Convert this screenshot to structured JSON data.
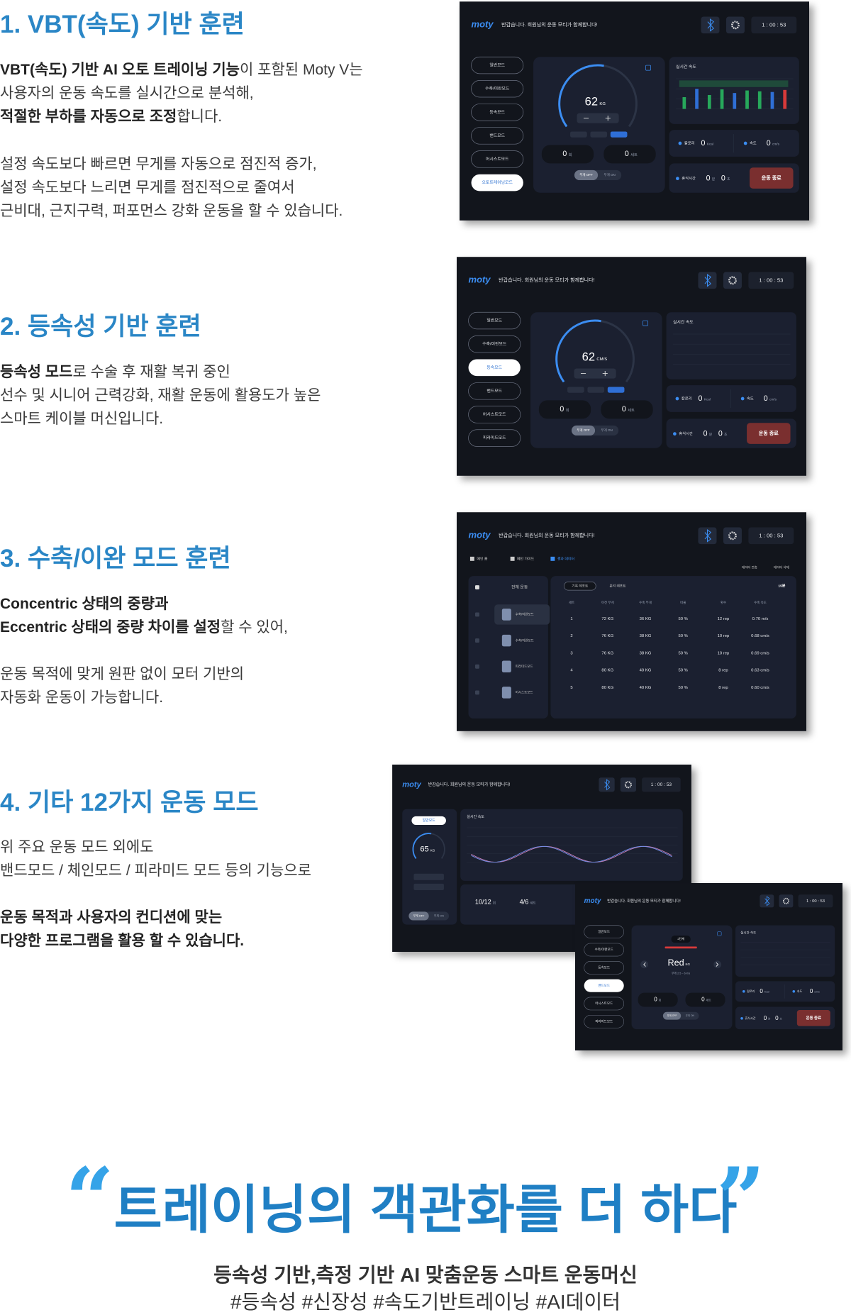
{
  "sections": [
    {
      "title": "1. VBT(속도) 기반 훈련",
      "paragraphs": [
        [
          [
            {
              "text": "VBT(속도) 기반 AI 오토 트레이닝 기능",
              "bold": true
            },
            {
              "text": "이 포함된 Moty V는",
              "bold": false
            }
          ],
          [
            {
              "text": "사용자의 운동 속도를 실시간으로 분석해,",
              "bold": false
            }
          ],
          [
            {
              "text": "적절한 부하를 자동으로 조정",
              "bold": true
            },
            {
              "text": "합니다.",
              "bold": false
            }
          ]
        ],
        [
          [
            {
              "text": "설정 속도보다 빠르면 무게를 자동으로 점진적 증가,",
              "bold": false
            }
          ],
          [
            {
              "text": "설정 속도보다 느리면 무게를 점진적으로 줄여서",
              "bold": false
            }
          ],
          [
            {
              "text": "근비대, 근지구력, 퍼포먼스 강화 운동을 할 수 있습니다.",
              "bold": false
            }
          ]
        ]
      ]
    },
    {
      "title": "2. 등속성 기반 훈련",
      "paragraphs": [
        [
          [
            {
              "text": "등속성 모드",
              "bold": true
            },
            {
              "text": "로 수술 후 재활 복귀 중인",
              "bold": false
            }
          ],
          [
            {
              "text": "선수 및 시니어 근력강화, 재활 운동에 활용도가 높은",
              "bold": false
            }
          ],
          [
            {
              "text": "스마트 케이블 머신입니다.",
              "bold": false
            }
          ]
        ]
      ]
    },
    {
      "title": "3. 수축/이완 모드 훈련",
      "paragraphs": [
        [
          [
            {
              "text": "Concentric 상태의 중량과",
              "bold": true
            }
          ],
          [
            {
              "text": "Eccentric 상태의 중량 차이를 설정",
              "bold": true
            },
            {
              "text": "할 수 있어,",
              "bold": false
            }
          ]
        ],
        [
          [
            {
              "text": "운동 목적에 맞게 원판 없이 모터 기반의",
              "bold": false
            }
          ],
          [
            {
              "text": "자동화 운동이 가능합니다.",
              "bold": false
            }
          ]
        ]
      ]
    },
    {
      "title": "4. 기타 12가지 운동 모드",
      "paragraphs": [
        [
          [
            {
              "text": "위 주요 운동 모드 외에도",
              "bold": false
            }
          ],
          [
            {
              "text": "밴드모드 / 체인모드 / 피라미드 모드 등의 기능으로",
              "bold": false
            }
          ]
        ],
        [
          [
            {
              "text": "운동 목적과 사용자의 컨디션에 맞는",
              "bold": true
            }
          ],
          [
            {
              "text": "다양한 프로그램을 활용 할 수 있습니다.",
              "bold": true
            }
          ]
        ]
      ]
    }
  ],
  "screens": [
    {
      "layout": "dashboard",
      "logo": "moty",
      "greeting": "반갑습니다. 회원님의 운동 모티가 함께합니다!",
      "time": "1 : 00 : 53",
      "modes": [
        "일반모드",
        "수축/이완모드",
        "등속모드",
        "밴드모드",
        "어시스트모드",
        "오토트레이닝모드"
      ],
      "active_mode": 5,
      "gauge": {
        "value": "62",
        "unit": "KG"
      },
      "counters": [
        {
          "value": "0",
          "unit": "회"
        },
        {
          "value": "0",
          "unit": "세트"
        }
      ],
      "toggle": [
        "무게 OFF",
        "무게 ON"
      ],
      "chart_title": "실시간 속도",
      "stats": [
        {
          "label": "칼로리",
          "value": "0",
          "unit": "Kcal"
        },
        {
          "label": "속도",
          "value": "0",
          "unit": "cm/s"
        }
      ],
      "rest_label": "휴식시간",
      "rest": [
        {
          "value": "0",
          "unit": "분"
        },
        {
          "value": "0",
          "unit": "초"
        }
      ],
      "end": "운동 종료"
    },
    {
      "layout": "dashboard",
      "logo": "moty",
      "greeting": "반갑습니다. 회원님의 운동 모티가 함께합니다!",
      "time": "1 : 00 : 53",
      "modes": [
        "일반모드",
        "수축/이완모드",
        "등속모드",
        "밴드모드",
        "어시스트모드",
        "피라미드모드"
      ],
      "active_mode": 2,
      "gauge": {
        "value": "62",
        "unit": "CM/S"
      },
      "counters": [
        {
          "value": "0",
          "unit": "회"
        },
        {
          "value": "0",
          "unit": "세트"
        }
      ],
      "toggle": [
        "무게 OFF",
        "무게 ON"
      ],
      "chart_title": "실시간 속도",
      "stats": [
        {
          "label": "칼로리",
          "value": "0",
          "unit": "Kcal"
        },
        {
          "label": "속도",
          "value": "0",
          "unit": "cm/s"
        }
      ],
      "rest_label": "휴식시간",
      "rest": [
        {
          "value": "0",
          "unit": "분"
        },
        {
          "value": "0",
          "unit": "초"
        }
      ],
      "end": "운동 종료"
    },
    {
      "layout": "table",
      "logo": "moty",
      "greeting": "반갑습니다. 회원님의 운동 모티가 함께합니다!",
      "time": "1 : 00 : 53",
      "nav": [
        "메인 홈",
        "메인 가이드",
        "결과 데이터"
      ],
      "actions": [
        "데이터 전송",
        "데이터 삭제"
      ],
      "all": "전체 운동",
      "exercises": [
        "수축/이완모드",
        "수축/이완모드",
        "피라미드모드",
        "어시스트모드"
      ],
      "report_tabs": [
        "기록 레포트",
        "분석 레포트"
      ],
      "duration": "15분",
      "columns": [
        "세트",
        "이전 무게",
        "수축 무게",
        "비율",
        "횟수",
        "수축 속도"
      ],
      "rows": [
        [
          "1",
          "72 KG",
          "36 KG",
          "50 %",
          "12 rep",
          "0.70 m/s"
        ],
        [
          "2",
          "76 KG",
          "38 KG",
          "50 %",
          "10 rep",
          "0.68 cm/s"
        ],
        [
          "3",
          "76 KG",
          "38 KG",
          "50 %",
          "10 rep",
          "0.69 cm/s"
        ],
        [
          "4",
          "80 KG",
          "40 KG",
          "50 %",
          "8 rep",
          "0.63 cm/s"
        ],
        [
          "5",
          "80 KG",
          "40 KG",
          "50 %",
          "8 rep",
          "0.60 cm/s"
        ]
      ]
    },
    {
      "layout": "live",
      "logo": "moty",
      "greeting": "반갑습니다. 회원님의 운동 모티가 함께합니다!",
      "time": "1 : 00 : 53",
      "mode": "일반모드",
      "gauge": {
        "value": "65",
        "unit": "KG"
      },
      "toggle": [
        "무게 OFF",
        "무게 ON"
      ],
      "chart_title": "실시간 속도",
      "reps": {
        "value": "10/12",
        "unit": "회"
      },
      "sets": {
        "value": "4/6",
        "unit": "세트"
      }
    },
    {
      "layout": "dashboard",
      "logo": "moty",
      "greeting": "반갑습니다. 회원님의 운동 모티가 함께합니다!",
      "time": "1 : 00 : 53",
      "modes": [
        "일반모드",
        "수축/이완모드",
        "등속모드",
        "밴드모드",
        "어시스트모드",
        "피라미드모드"
      ],
      "active_mode": 3,
      "band": {
        "level": "2단계",
        "value": "Red",
        "unit": "KG",
        "range": "무게 2.5 ~ 6 KG"
      },
      "counters": [
        {
          "value": "0",
          "unit": "회"
        },
        {
          "value": "0",
          "unit": "세트"
        }
      ],
      "toggle": [
        "무게 OFF",
        "무게 ON"
      ],
      "chart_title": "실시간 속도",
      "stats": [
        {
          "label": "칼로리",
          "value": "0",
          "unit": "Kcal"
        },
        {
          "label": "속도",
          "value": "0",
          "unit": "cm/s"
        }
      ],
      "rest_label": "휴식시간",
      "rest": [
        {
          "value": "0",
          "unit": "분"
        },
        {
          "value": "0",
          "unit": "초"
        }
      ],
      "end": "운동 종료"
    }
  ],
  "closing": {
    "open_quote": "“",
    "headline": "트레이닝의 객관화를 더 하다",
    "close_quote": "”",
    "subtitle": "등속성 기반,측정 기반 AI 맞춤운동 스마트 운동머신",
    "tags": "#등속성 #신장성 #속도기반트레이닝 #AI데이터"
  }
}
